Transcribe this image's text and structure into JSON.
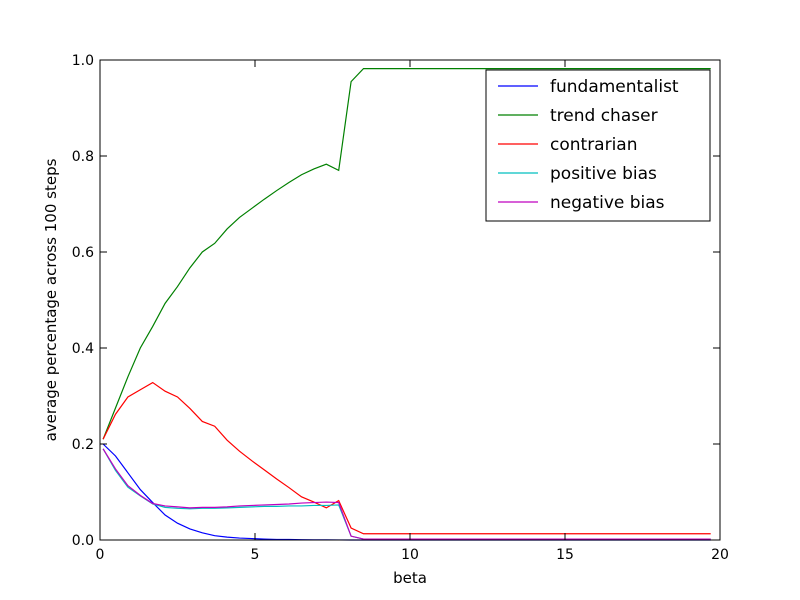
{
  "chart_data": {
    "type": "line",
    "title": "",
    "xlabel": "beta",
    "ylabel": "average percentage across 100 steps",
    "xlim": [
      0,
      20
    ],
    "ylim": [
      0.0,
      1.0
    ],
    "x_ticks": [
      0,
      5,
      10,
      15,
      20
    ],
    "y_ticks": [
      0.0,
      0.2,
      0.4,
      0.6,
      0.8,
      1.0
    ],
    "x_tick_labels": [
      "0",
      "5",
      "10",
      "15",
      "20"
    ],
    "y_tick_labels": [
      "0.0",
      "0.2",
      "0.4",
      "0.6",
      "0.8",
      "1.0"
    ],
    "grid": false,
    "legend_position": "top-right",
    "x": [
      0.1,
      0.5,
      0.9,
      1.3,
      1.7,
      2.1,
      2.5,
      2.9,
      3.3,
      3.7,
      4.1,
      4.5,
      4.9,
      5.3,
      5.7,
      6.1,
      6.5,
      6.9,
      7.3,
      7.7,
      8.1,
      8.5,
      9.0,
      10.0,
      12.0,
      14.0,
      16.0,
      18.0,
      19.7
    ],
    "series": [
      {
        "name": "fundamentalist",
        "color": "#0000ff",
        "values": [
          0.2,
          0.175,
          0.14,
          0.105,
          0.078,
          0.052,
          0.035,
          0.023,
          0.015,
          0.009,
          0.006,
          0.004,
          0.003,
          0.002,
          0.001,
          0.001,
          0.0005,
          0.0003,
          0.0002,
          0.0001,
          0.0,
          0.0,
          0.0,
          0.0,
          0.0,
          0.0,
          0.0,
          0.0,
          0.0
        ]
      },
      {
        "name": "trend chaser",
        "color": "#008000",
        "values": [
          0.21,
          0.275,
          0.34,
          0.4,
          0.445,
          0.493,
          0.528,
          0.567,
          0.6,
          0.618,
          0.648,
          0.672,
          0.691,
          0.71,
          0.728,
          0.745,
          0.761,
          0.773,
          0.783,
          0.77,
          0.955,
          0.982,
          0.982,
          0.982,
          0.982,
          0.982,
          0.982,
          0.982,
          0.982
        ]
      },
      {
        "name": "contrarian",
        "color": "#ff0000",
        "values": [
          0.21,
          0.262,
          0.298,
          0.313,
          0.328,
          0.31,
          0.298,
          0.274,
          0.247,
          0.237,
          0.208,
          0.185,
          0.165,
          0.146,
          0.127,
          0.109,
          0.09,
          0.079,
          0.067,
          0.082,
          0.025,
          0.013,
          0.013,
          0.013,
          0.013,
          0.013,
          0.013,
          0.013,
          0.013
        ]
      },
      {
        "name": "positive bias",
        "color": "#00bfbf",
        "values": [
          0.19,
          0.145,
          0.11,
          0.092,
          0.075,
          0.068,
          0.066,
          0.065,
          0.066,
          0.066,
          0.067,
          0.068,
          0.069,
          0.07,
          0.07,
          0.071,
          0.071,
          0.072,
          0.072,
          0.073,
          0.008,
          0.002,
          0.002,
          0.002,
          0.002,
          0.002,
          0.002,
          0.002,
          0.002
        ]
      },
      {
        "name": "negative bias",
        "color": "#bf00bf",
        "values": [
          0.19,
          0.148,
          0.113,
          0.093,
          0.076,
          0.071,
          0.069,
          0.067,
          0.068,
          0.068,
          0.069,
          0.071,
          0.072,
          0.073,
          0.074,
          0.075,
          0.077,
          0.078,
          0.079,
          0.078,
          0.008,
          0.002,
          0.002,
          0.002,
          0.002,
          0.002,
          0.002,
          0.002,
          0.002
        ]
      }
    ]
  }
}
